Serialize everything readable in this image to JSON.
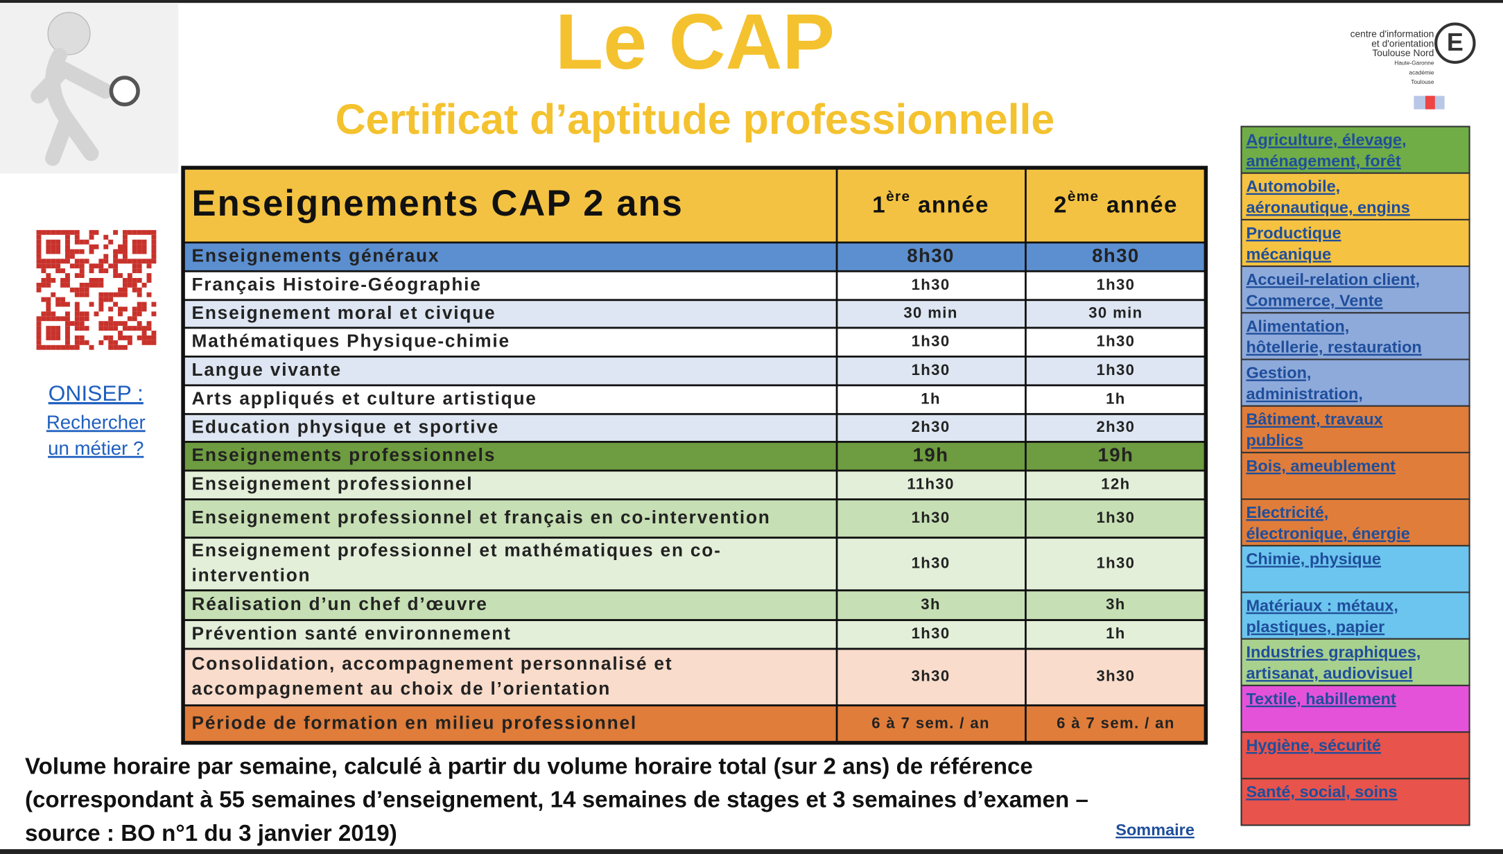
{
  "header": {
    "title": "Le CAP",
    "subtitle": "Certificat d’aptitude professionnelle"
  },
  "logo": [
    "centre d'information",
    "et d'orientation",
    "Toulouse Nord",
    "Haute-Garonne",
    "académie",
    "Toulouse"
  ],
  "onisep": [
    "ONISEP :",
    "Rechercher",
    "un métier ?"
  ],
  "table": {
    "header": [
      "Enseignements CAP 2 ans",
      [
        "1",
        "ère",
        " année"
      ],
      [
        "2",
        "ème",
        " année"
      ]
    ],
    "header_fill": "#f3c242",
    "rows": [
      {
        "label": [
          "Enseignements généraux"
        ],
        "year1": "8h30",
        "year2": "8h30",
        "fill": "#5b8fd0"
      },
      {
        "label": [
          "Français Histoire-Géographie"
        ],
        "year1": "1h30",
        "year2": "1h30",
        "fill": "#ffffff"
      },
      {
        "label": [
          "Enseignement moral et civique"
        ],
        "year1": "30 min",
        "year2": "30 min",
        "fill": "#dde6f2"
      },
      {
        "label": [
          "Mathématiques Physique-chimie"
        ],
        "year1": "1h30",
        "year2": "1h30",
        "fill": "#ffffff"
      },
      {
        "label": [
          "Langue vivante"
        ],
        "year1": "1h30",
        "year2": "1h30",
        "fill": "#dde6f2"
      },
      {
        "label": [
          "Arts appliqués et culture artistique"
        ],
        "year1": "1h",
        "year2": "1h",
        "fill": "#ffffff"
      },
      {
        "label": [
          "Education physique et sportive"
        ],
        "year1": "2h30",
        "year2": "2h30",
        "fill": "#dde6f2"
      },
      {
        "label": [
          "Enseignements professionnels"
        ],
        "year1": "19h",
        "year2": "19h",
        "fill": "#6e9c40"
      },
      {
        "label": [
          "Enseignement professionnel"
        ],
        "year1": "11h30",
        "year2": "12h",
        "fill": "#e3efd9"
      },
      {
        "label": [
          "Enseignement professionnel et français en co-intervention"
        ],
        "year1": "1h30",
        "year2": "1h30",
        "fill": "#c6dfb4"
      },
      {
        "label": [
          "Enseignement professionnel et mathématiques en co-",
          "intervention"
        ],
        "year1": "1h30",
        "year2": "1h30",
        "fill": "#e3efd9"
      },
      {
        "label": [
          "Réalisation d’un chef d’œuvre"
        ],
        "year1": "3h",
        "year2": "3h",
        "fill": "#c6dfb4"
      },
      {
        "label": [
          "Prévention santé environnement"
        ],
        "year1": "1h30",
        "year2": "1h",
        "fill": "#e3efd9"
      },
      {
        "label": [
          "Consolidation, accompagnement personnalisé et",
          "accompagnement au choix de l’orientation"
        ],
        "year1": "3h30",
        "year2": "3h30",
        "fill": "#f9dccb"
      },
      {
        "label": [
          "Période de formation en milieu professionnel"
        ],
        "year1": "6 à 7 sem. / an",
        "year2": "6 à 7 sem. / an",
        "fill": "#e07d3a"
      }
    ]
  },
  "sectors": [
    {
      "label": [
        "Agriculture, élevage,",
        "aménagement, forêt"
      ],
      "fill": "#70ad47"
    },
    {
      "label": [
        "Automobile,",
        "aéronautique, engins"
      ],
      "fill": "#f5c242"
    },
    {
      "label": [
        "Productique",
        "mécanique"
      ],
      "fill": "#f5c242"
    },
    {
      "label": [
        "Accueil-relation client,",
        "Commerce, Vente"
      ],
      "fill": "#8eaadb"
    },
    {
      "label": [
        "Alimentation,",
        "hôtellerie, restauration"
      ],
      "fill": "#8eaadb"
    },
    {
      "label": [
        "Gestion,",
        "administration,"
      ],
      "fill": "#8eaadb"
    },
    {
      "label": [
        "Bâtiment, travaux",
        "publics"
      ],
      "fill": "#e07d3a"
    },
    {
      "label": [
        "Bois, ameublement"
      ],
      "fill": "#e07d3a"
    },
    {
      "label": [
        "Electricité,",
        "électronique, énergie"
      ],
      "fill": "#e07d3a"
    },
    {
      "label": [
        "Chimie, physique"
      ],
      "fill": "#6cc5ee"
    },
    {
      "label": [
        "Matériaux : métaux,",
        "plastiques, papier"
      ],
      "fill": "#6cc5ee"
    },
    {
      "label": [
        "Industries graphiques,",
        "artisanat, audiovisuel"
      ],
      "fill": "#a9d18e"
    },
    {
      "label": [
        "Textile, habillement"
      ],
      "fill": "#e552da"
    },
    {
      "label": [
        "Hygiène, sécurité"
      ],
      "fill": "#e8534b"
    },
    {
      "label": [
        "Santé, social, soins"
      ],
      "fill": "#e8534b"
    }
  ],
  "footer": {
    "note": [
      "Volume horaire par semaine, calculé à partir du volume horaire total (sur 2 ans) de référence",
      "(correspondant à 55 semaines d’enseignement, 14 semaines de stages et 3 semaines d’examen –",
      "source : BO n°1 du 3 janvier 2019)"
    ],
    "link": "Sommaire"
  }
}
